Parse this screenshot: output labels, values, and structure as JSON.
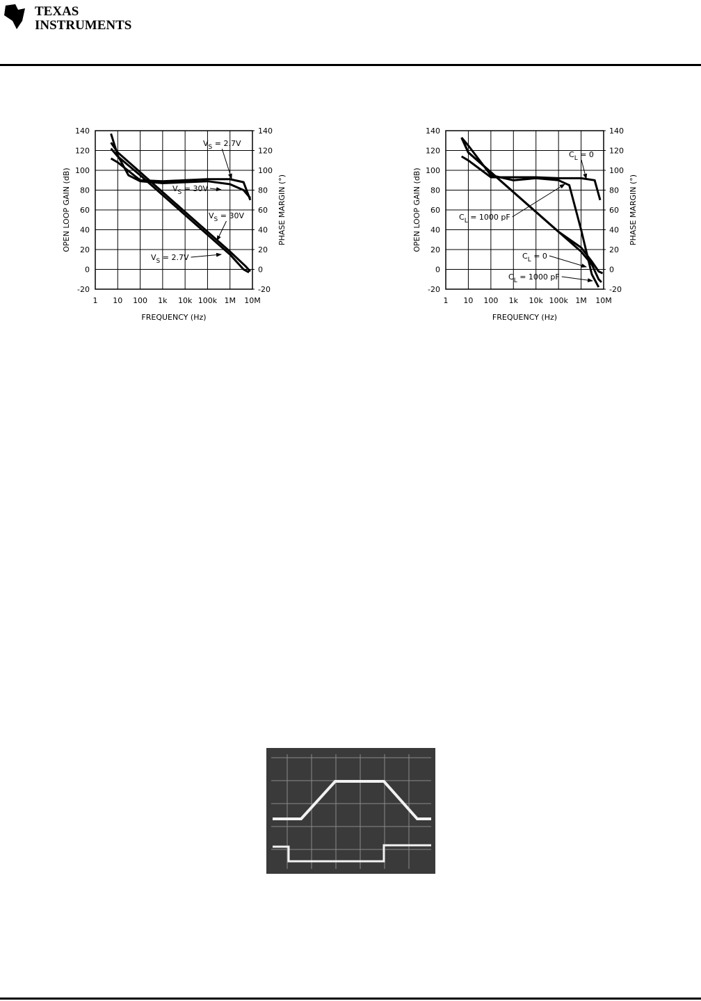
{
  "header": {
    "logo_lines": [
      "TEXAS",
      "INSTRUMENTS"
    ]
  },
  "chart_data": [
    {
      "type": "line",
      "log_x": true,
      "grid": true,
      "color": "#000000",
      "x_label": "FREQUENCY (Hz)",
      "y_label": "OPEN LOOP GAIN (dB)",
      "y2_label": "PHASE MARGIN (°)",
      "xlim": [
        1,
        10000000
      ],
      "xticks": [
        1,
        10,
        100,
        {
          "value": 1000,
          "label": "1k"
        },
        {
          "value": 10000,
          "label": "10k"
        },
        {
          "value": 100000,
          "label": "100k"
        },
        {
          "value": 1000000,
          "label": "1M"
        },
        {
          "value": 10000000,
          "label": "10M"
        }
      ],
      "ylim": [
        -20,
        140
      ],
      "yticks": [
        -20,
        0,
        20,
        40,
        60,
        80,
        100,
        120,
        140
      ],
      "y2lim": [
        -20,
        140
      ],
      "y2ticks": [
        -20,
        0,
        20,
        40,
        60,
        80,
        100,
        120,
        140
      ],
      "series": [
        {
          "x": [
            5,
            10,
            100,
            1000,
            10000,
            100000,
            1000000,
            5000000,
            8000000
          ],
          "values": [
            128,
            118,
            98,
            78,
            58,
            38,
            18,
            3,
            -2
          ]
        },
        {
          "x": [
            5,
            10,
            100,
            1000,
            10000,
            100000,
            1000000,
            4000000,
            7000000
          ],
          "values": [
            122,
            114,
            95,
            75,
            55,
            35,
            15,
            0,
            -3
          ]
        },
        {
          "axis": "y2",
          "x": [
            5,
            10,
            100,
            1000,
            10000,
            100000,
            1000000,
            4000000,
            8000000
          ],
          "values": [
            112,
            108,
            90,
            89,
            90,
            91,
            91,
            88,
            70
          ]
        },
        {
          "axis": "y2",
          "x": [
            5,
            10,
            30,
            100,
            1000,
            10000,
            100000,
            1000000,
            4000000,
            8000000
          ],
          "values": [
            137,
            115,
            95,
            89,
            87,
            88,
            89,
            86,
            80,
            72
          ]
        }
      ],
      "annotations": [
        {
          "text": "V",
          "sub": "S",
          "rest": " = 2.7V"
        },
        {
          "text": "V",
          "sub": "S",
          "rest": " = 30V"
        },
        {
          "text": "V",
          "sub": "S",
          "rest": " = 30V"
        },
        {
          "text": "V",
          "sub": "S",
          "rest": " = 2.7V"
        }
      ]
    },
    {
      "type": "line",
      "log_x": true,
      "grid": true,
      "color": "#000000",
      "x_label": "FREQUENCY (Hz)",
      "y_label": "OPEN LOOP GAIN (dB)",
      "y2_label": "PHASE MARGIN (°)",
      "xlim": [
        1,
        10000000
      ],
      "xticks": [
        1,
        10,
        100,
        {
          "value": 1000,
          "label": "1k"
        },
        {
          "value": 10000,
          "label": "10k"
        },
        {
          "value": 100000,
          "label": "100k"
        },
        {
          "value": 1000000,
          "label": "1M"
        },
        {
          "value": 10000000,
          "label": "10M"
        }
      ],
      "ylim": [
        -20,
        140
      ],
      "yticks": [
        -20,
        0,
        20,
        40,
        60,
        80,
        100,
        120,
        140
      ],
      "y2lim": [
        -20,
        140
      ],
      "y2ticks": [
        -20,
        0,
        20,
        40,
        60,
        80,
        100,
        120,
        140
      ],
      "series": [
        {
          "x": [
            5,
            10,
            100,
            1000,
            10000,
            100000,
            1000000,
            3000000,
            6000000,
            9000000
          ],
          "values": [
            133,
            118,
            98,
            78,
            58,
            38,
            22,
            8,
            -2,
            -4
          ]
        },
        {
          "x": [
            5,
            10,
            100,
            1000,
            10000,
            100000,
            1000000,
            3000000,
            6000000,
            8000000
          ],
          "values": [
            133,
            118,
            98,
            78,
            58,
            38,
            18,
            5,
            -10,
            -13
          ]
        },
        {
          "axis": "y2",
          "x": [
            5,
            10,
            100,
            1000,
            10000,
            100000,
            1000000,
            4000000,
            7000000
          ],
          "values": [
            114,
            110,
            93,
            93,
            93,
            92,
            92,
            90,
            70
          ]
        },
        {
          "axis": "y2",
          "x": [
            5,
            10,
            100,
            1000,
            10000,
            100000,
            300000,
            1000000,
            3000000,
            6000000
          ],
          "values": [
            133,
            125,
            95,
            90,
            92,
            90,
            85,
            40,
            -5,
            -18
          ]
        }
      ],
      "annotations": [
        {
          "text": "C",
          "sub": "L",
          "rest": " = 0"
        },
        {
          "text": "C",
          "sub": "L",
          "rest": " = 1000 pF"
        },
        {
          "text": "C",
          "sub": "L",
          "rest": " = 0"
        },
        {
          "text": "C",
          "sub": "L",
          "rest": " = 1000 pF"
        }
      ]
    }
  ]
}
